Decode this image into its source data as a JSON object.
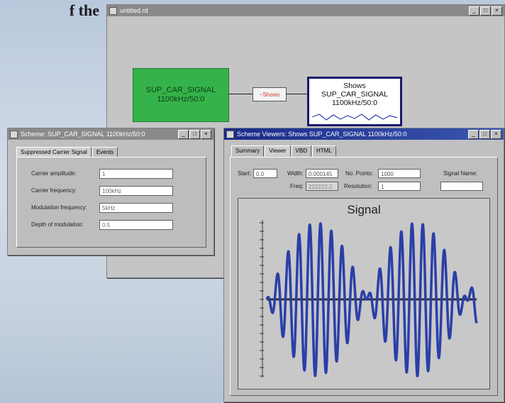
{
  "intro": {
    "text": "f the"
  },
  "main_window": {
    "title": "untitled.rd",
    "controls": [
      "_",
      "□",
      "×"
    ],
    "source_block": {
      "line1": "SUP_CAR_SIGNAL",
      "line2": "1100kHz/50:0"
    },
    "operator_block": {
      "label": "~Shows"
    },
    "scope_block": {
      "line1": "Shows",
      "line2": "SUP_CAR_SIGNAL",
      "line3": "1100kHz/50:0"
    }
  },
  "scheme_window": {
    "title": "Scheme:   SUP_CAR_SIGNAL 1100kHz/50:0",
    "controls": [
      "_",
      "□",
      "×"
    ],
    "tabs": [
      "Suppressed Carrier Signal",
      "Events"
    ],
    "fields": [
      {
        "label": "Carrier amplitude:",
        "value": "1"
      },
      {
        "label": "Carrier frequency:",
        "value": "100kHz"
      },
      {
        "label": "Modulation frequency:",
        "value": "5kHz"
      },
      {
        "label": "Depth of modulation:",
        "value": "0.5"
      }
    ]
  },
  "viewer_window": {
    "title": "Scheme Viewers: Shows SUP_CAR_SIGNAL 1100kHz/50:0",
    "controls": [
      "_",
      "□",
      "×"
    ],
    "tabs": [
      "Summary",
      "Viewer",
      "VBD",
      "HTML"
    ],
    "controls_row": {
      "start_label": "Start:",
      "start_value": "0.0",
      "width_label": "Width:",
      "width_value": "0.000145",
      "freq_label": "Freq:",
      "freq_value": "222222.2",
      "points_label": "No. Points:",
      "points_value": "1000",
      "resolution_label": "Resolution:",
      "resolution_value": "1",
      "signal_name_label": "Signal Name:",
      "signal_name_value": ""
    },
    "plot": {
      "title": "Signal"
    }
  },
  "colors": {
    "source_fill": "#35b34a",
    "operator_text": "#d23a2a",
    "scope_border": "#1a1a6e",
    "signal_line": "#2a3fa8"
  },
  "icons": {
    "window_menu": "window-menu-icon",
    "minimize": "minimize-icon",
    "maximize": "maximize-icon",
    "close": "close-icon"
  }
}
